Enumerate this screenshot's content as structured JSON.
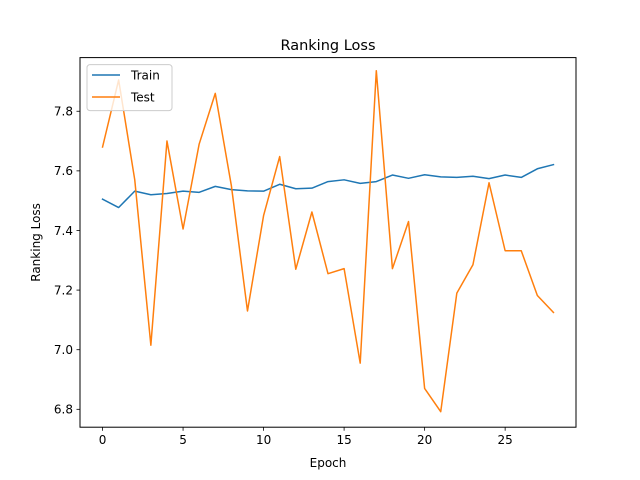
{
  "chart_data": {
    "type": "line",
    "title": "Ranking Loss",
    "xlabel": "Epoch",
    "ylabel": "Ranking Loss",
    "xlim": [
      -1.4,
      29.4
    ],
    "ylim": [
      6.74,
      7.98
    ],
    "x_ticks": [
      0,
      5,
      10,
      15,
      20,
      25
    ],
    "y_ticks": [
      6.8,
      7.0,
      7.2,
      7.4,
      7.6,
      7.8
    ],
    "x": [
      0,
      1,
      2,
      3,
      4,
      5,
      6,
      7,
      8,
      9,
      10,
      11,
      12,
      13,
      14,
      15,
      16,
      17,
      18,
      19,
      20,
      21,
      22,
      23,
      24,
      25,
      26,
      27,
      28
    ],
    "grid": false,
    "legend_position": "top-left",
    "series": [
      {
        "name": "Train",
        "color": "#1f77b4",
        "values": [
          7.505,
          7.477,
          7.532,
          7.52,
          7.524,
          7.532,
          7.528,
          7.548,
          7.537,
          7.533,
          7.532,
          7.555,
          7.54,
          7.542,
          7.564,
          7.57,
          7.558,
          7.564,
          7.586,
          7.575,
          7.587,
          7.58,
          7.578,
          7.582,
          7.574,
          7.586,
          7.578,
          7.607,
          7.621
        ]
      },
      {
        "name": "Test",
        "color": "#ff7f0e",
        "values": [
          7.68,
          7.905,
          7.57,
          7.015,
          7.7,
          7.405,
          7.69,
          7.86,
          7.55,
          7.13,
          7.45,
          7.648,
          7.27,
          7.462,
          7.255,
          7.272,
          6.955,
          7.936,
          7.272,
          7.43,
          6.87,
          6.792,
          7.19,
          7.285,
          7.56,
          7.332,
          7.332,
          7.182,
          7.125
        ]
      }
    ]
  }
}
